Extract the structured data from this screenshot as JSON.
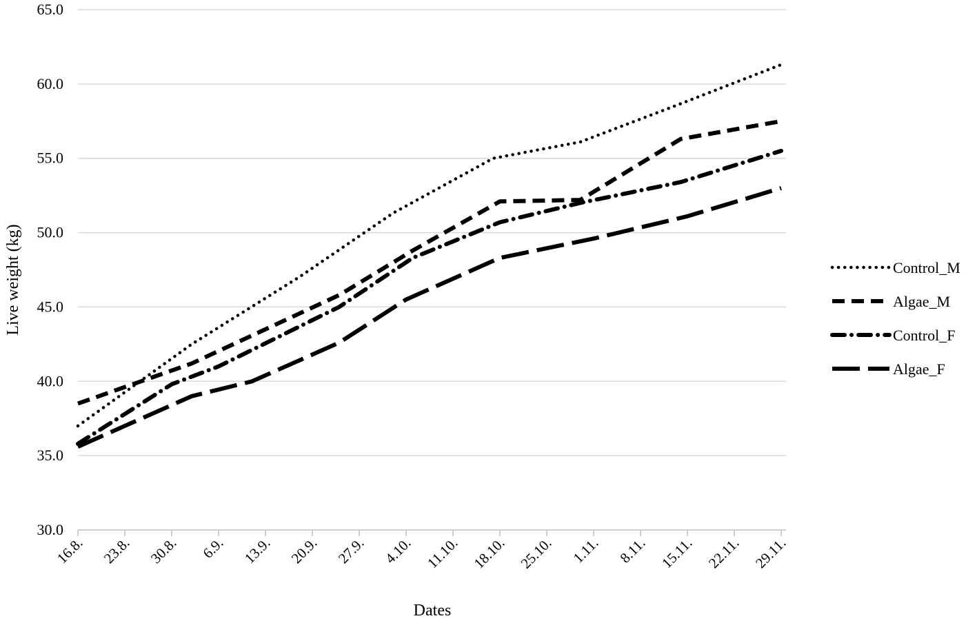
{
  "chart_data": {
    "type": "line",
    "title": "",
    "xlabel": "Dates",
    "ylabel": "Live weight (kg)",
    "ylim": [
      30,
      65
    ],
    "yticks": [
      "30.0",
      "35.0",
      "40.0",
      "45.0",
      "50.0",
      "55.0",
      "60.0",
      "65.0"
    ],
    "categories": [
      "16.8.",
      "23.8.",
      "30.8.",
      "6.9.",
      "13.9.",
      "20.9.",
      "27.9.",
      "4.10.",
      "11.10.",
      "18.10.",
      "25.10.",
      "1.11.",
      "8.11.",
      "15.11.",
      "22.11.",
      "29.11."
    ],
    "grid": true,
    "legend_position": "right",
    "series": [
      {
        "name": "Control_M",
        "style": "dotted",
        "x": [
          "16.8.",
          "2.9.",
          "18.9.",
          "2.10.",
          "17.10.",
          "30.10.",
          "13.11.",
          "29.11."
        ],
        "values": [
          37.0,
          42.5,
          47.0,
          51.3,
          55.0,
          56.1,
          58.5,
          61.3
        ]
      },
      {
        "name": "Algae_M",
        "style": "dashed",
        "x": [
          "16.8.",
          "2.9.",
          "24.9.",
          "5.10.",
          "18.10.",
          "30.10.",
          "14.11.",
          "29.11."
        ],
        "values": [
          38.5,
          41.2,
          45.8,
          48.8,
          52.1,
          52.2,
          56.3,
          57.5
        ]
      },
      {
        "name": "Control_F",
        "style": "dash-dot",
        "x": [
          "16.8.",
          "30.8.",
          "6.9.",
          "24.9.",
          "5.10.",
          "18.10.",
          "30.10.",
          "14.11.",
          "29.11."
        ],
        "values": [
          35.8,
          39.8,
          41.0,
          45.0,
          48.3,
          50.7,
          52.0,
          53.4,
          55.5
        ]
      },
      {
        "name": "Algae_F",
        "style": "long-dash",
        "x": [
          "16.8.",
          "2.9.",
          "11.9.",
          "24.9.",
          "4.10.",
          "18.10.",
          "1.11.",
          "15.11.",
          "29.11."
        ],
        "values": [
          35.6,
          39.0,
          40.0,
          42.6,
          45.5,
          48.3,
          49.6,
          51.1,
          53.0
        ]
      }
    ]
  }
}
